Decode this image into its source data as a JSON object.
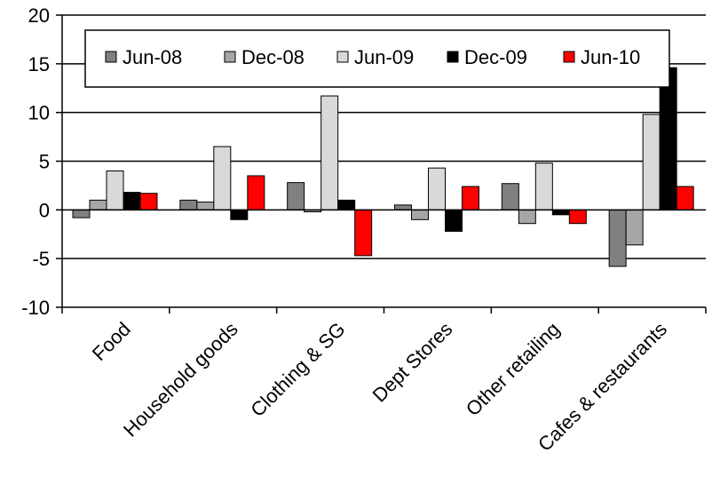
{
  "chart_data": {
    "type": "bar",
    "categories": [
      "Food",
      "Household goods",
      "Clothing & SG",
      "Dept Stores",
      "Other retailing",
      "Cafes & restaurants"
    ],
    "series": [
      {
        "name": "Jun-08",
        "color": "#808080",
        "values": [
          -0.8,
          1.0,
          2.8,
          0.5,
          2.7,
          -5.8
        ]
      },
      {
        "name": "Dec-08",
        "color": "#a6a6a6",
        "values": [
          1.0,
          0.8,
          -0.2,
          -1.0,
          -1.4,
          -3.6
        ]
      },
      {
        "name": "Jun-09",
        "color": "#d9d9d9",
        "values": [
          4.0,
          6.5,
          11.7,
          4.3,
          4.8,
          9.8
        ]
      },
      {
        "name": "Dec-09",
        "color": "#000000",
        "values": [
          1.8,
          -1.0,
          1.0,
          -2.2,
          -0.5,
          14.6
        ]
      },
      {
        "name": "Jun-10",
        "color": "#ff0000",
        "values": [
          1.7,
          3.5,
          -4.7,
          2.4,
          -1.4,
          2.4
        ]
      }
    ],
    "yticks": [
      "20",
      "15",
      "10",
      "5",
      "0",
      "-5",
      "-10"
    ],
    "ylim": [
      -10,
      20
    ],
    "legend_position": "top",
    "title": "",
    "xlabel": "",
    "ylabel": ""
  }
}
